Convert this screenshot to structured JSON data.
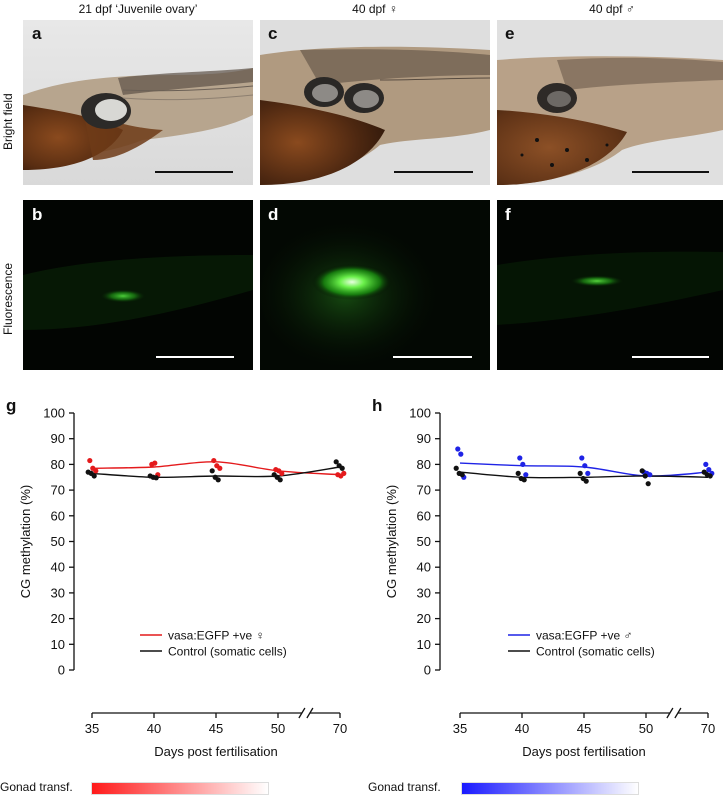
{
  "column_titles": [
    "21 dpf ‘Juvenile ovary’",
    "40 dpf ♀",
    "40 dpf ♂"
  ],
  "row_titles": [
    "Bright field",
    "Fluorescence"
  ],
  "panel_labels": [
    "a",
    "b",
    "c",
    "d",
    "e",
    "f",
    "g",
    "h"
  ],
  "gonad_label": "Gonad transf.",
  "colors": {
    "female": "#e41a1c",
    "male": "#1f23e6",
    "control": "#111111"
  },
  "chart_data": [
    {
      "type": "line",
      "panel": "g",
      "ylabel": "CG methylation (%)",
      "xlabel": "Days post fertilisation",
      "ylim": [
        0,
        100
      ],
      "yticks": [
        0,
        10,
        20,
        30,
        40,
        50,
        60,
        70,
        80,
        90,
        100
      ],
      "xticks": [
        35,
        40,
        45,
        50,
        70
      ],
      "x_axis_break": "between 50 and 70",
      "grid": false,
      "legend_position": "lower-right",
      "series": [
        {
          "name": "vasa:EGFP +ve ♀",
          "color": "#e41a1c",
          "points": [
            [
              35,
              81.5
            ],
            [
              35,
              78.5
            ],
            [
              35,
              77.5
            ],
            [
              40,
              80
            ],
            [
              40,
              80.5
            ],
            [
              40,
              76
            ],
            [
              45,
              81.5
            ],
            [
              45,
              79.5
            ],
            [
              45,
              78.5
            ],
            [
              50,
              78
            ],
            [
              50,
              77.5
            ],
            [
              50,
              76.5
            ],
            [
              70,
              76
            ],
            [
              70,
              75.5
            ],
            [
              70,
              76.5
            ]
          ],
          "trend": [
            [
              35,
              78.5
            ],
            [
              40,
              79
            ],
            [
              45,
              81
            ],
            [
              50,
              77.5
            ],
            [
              70,
              76
            ]
          ]
        },
        {
          "name": "Control (somatic cells)",
          "color": "#111111",
          "points": [
            [
              35,
              77
            ],
            [
              35,
              76.5
            ],
            [
              35,
              75.5
            ],
            [
              40,
              75.5
            ],
            [
              40,
              75
            ],
            [
              40,
              74.8
            ],
            [
              45,
              77.5
            ],
            [
              45,
              75
            ],
            [
              45,
              74
            ],
            [
              50,
              76
            ],
            [
              50,
              75
            ],
            [
              50,
              74
            ],
            [
              70,
              81
            ],
            [
              70,
              79.5
            ],
            [
              70,
              78.5
            ]
          ],
          "trend": [
            [
              35,
              76.5
            ],
            [
              40,
              75
            ],
            [
              45,
              75.5
            ],
            [
              50,
              75.5
            ],
            [
              70,
              79
            ]
          ]
        }
      ]
    },
    {
      "type": "line",
      "panel": "h",
      "ylabel": "CG methylation (%)",
      "xlabel": "Days post fertilisation",
      "ylim": [
        0,
        100
      ],
      "yticks": [
        0,
        10,
        20,
        30,
        40,
        50,
        60,
        70,
        80,
        90,
        100
      ],
      "xticks": [
        35,
        40,
        45,
        50,
        70
      ],
      "x_axis_break": "between 50 and 70",
      "grid": false,
      "legend_position": "lower-right",
      "series": [
        {
          "name": "vasa:EGFP +ve ♂",
          "color": "#1f23e6",
          "points": [
            [
              35,
              86
            ],
            [
              35,
              84
            ],
            [
              35,
              75
            ],
            [
              40,
              82.5
            ],
            [
              40,
              80
            ],
            [
              40,
              76
            ],
            [
              45,
              82.5
            ],
            [
              45,
              79.5
            ],
            [
              45,
              76.5
            ],
            [
              50,
              77
            ],
            [
              50,
              76.5
            ],
            [
              50,
              76
            ],
            [
              70,
              80
            ],
            [
              70,
              78
            ],
            [
              70,
              76.5
            ]
          ],
          "trend": [
            [
              35,
              80.5
            ],
            [
              40,
              79.5
            ],
            [
              45,
              79
            ],
            [
              50,
              75.5
            ],
            [
              70,
              77
            ]
          ]
        },
        {
          "name": "Control (somatic cells)",
          "color": "#111111",
          "points": [
            [
              35,
              78.5
            ],
            [
              35,
              76.5
            ],
            [
              35,
              76
            ],
            [
              40,
              76.5
            ],
            [
              40,
              74.5
            ],
            [
              40,
              74
            ],
            [
              45,
              76.5
            ],
            [
              45,
              74.5
            ],
            [
              45,
              73.5
            ],
            [
              50,
              77.5
            ],
            [
              50,
              75.5
            ],
            [
              50,
              72.5
            ],
            [
              70,
              77
            ],
            [
              70,
              76
            ],
            [
              70,
              75.5
            ]
          ],
          "trend": [
            [
              35,
              77
            ],
            [
              40,
              75
            ],
            [
              45,
              75
            ],
            [
              50,
              75.5
            ],
            [
              70,
              75
            ]
          ]
        }
      ]
    }
  ]
}
